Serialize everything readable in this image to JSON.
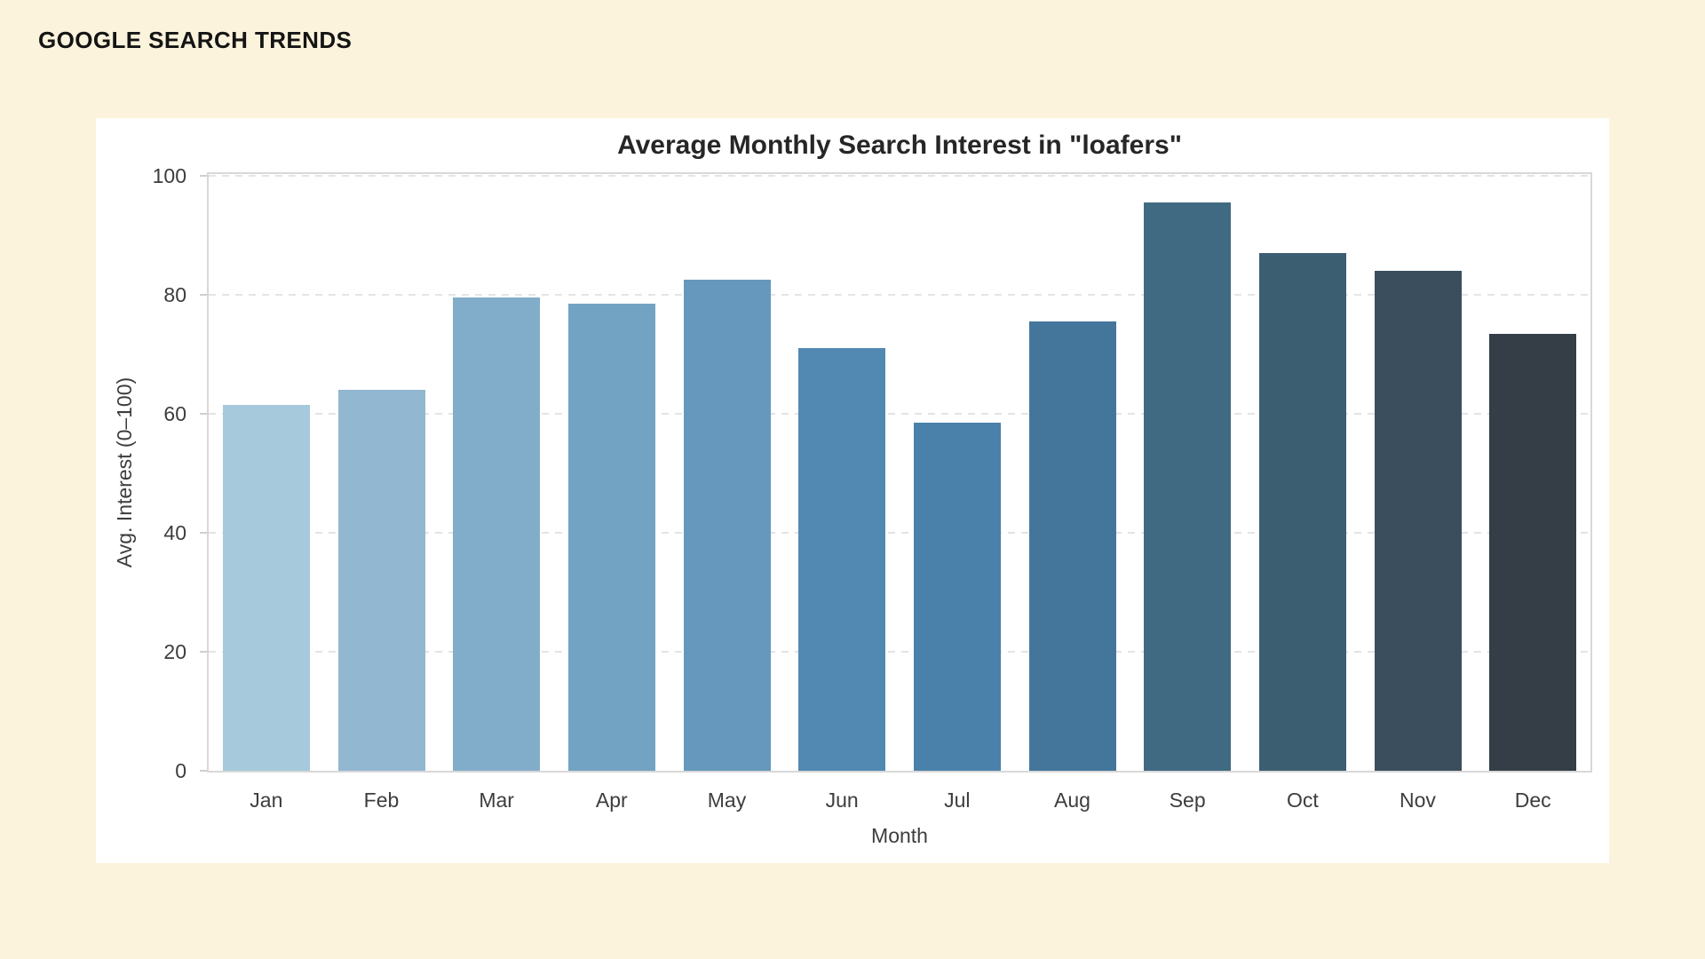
{
  "page": {
    "header": "GOOGLE SEARCH TRENDS",
    "background_color": "#fcf3dc",
    "panel_color": "#ffffff"
  },
  "chart_data": {
    "type": "bar",
    "title": "Average Monthly Search Interest in \"loafers\"",
    "xlabel": "Month",
    "ylabel": "Avg. Interest (0–100)",
    "categories": [
      "Jan",
      "Feb",
      "Mar",
      "Apr",
      "May",
      "Jun",
      "Jul",
      "Aug",
      "Sep",
      "Oct",
      "Nov",
      "Dec"
    ],
    "values": [
      61.5,
      64,
      79.5,
      78.5,
      82.5,
      71,
      58.5,
      75.5,
      95.5,
      87,
      84,
      73.5
    ],
    "ylim": [
      0,
      100
    ],
    "yticks": [
      0,
      20,
      40,
      60,
      80,
      100
    ],
    "grid": "horizontal-dashed",
    "legend": "none",
    "bar_colors": [
      "#a6c9db",
      "#92b7d1",
      "#82adca",
      "#73a3c3",
      "#6598bc",
      "#5289b3",
      "#4a81aa",
      "#44769c",
      "#406a82",
      "#3c5e71",
      "#3a4e5d",
      "#353d46"
    ],
    "colors": {
      "grid_line": "#e4e4e4",
      "spine": "#d8d8d8",
      "title_text": "#262626",
      "tick_text": "#3d3d3d",
      "header_text": "#141414"
    }
  }
}
